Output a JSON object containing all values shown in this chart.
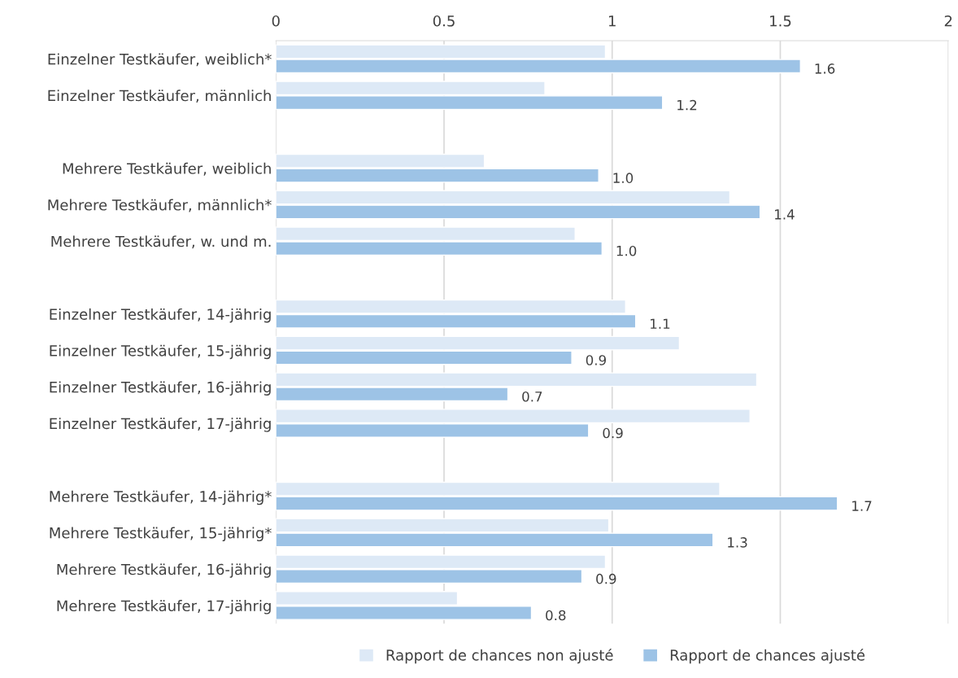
{
  "chart_data": {
    "type": "bar",
    "orientation": "horizontal",
    "categories": [
      "Einzelner Testkäufer, weiblich*",
      "Einzelner Testkäufer, männlich",
      null,
      "Mehrere Testkäufer, weiblich",
      "Mehrere Testkäufer, männlich*",
      "Mehrere Testkäufer, w. und m.",
      null,
      "Einzelner Testkäufer, 14-jährig",
      "Einzelner Testkäufer, 15-jährig",
      "Einzelner Testkäufer, 16-jährig",
      "Einzelner Testkäufer, 17-jährig",
      null,
      "Mehrere Testkäufer, 14-jährig*",
      "Mehrere Testkäufer, 15-jährig*",
      "Mehrere Testkäufer, 16-jährig",
      "Mehrere Testkäufer, 17-jährig"
    ],
    "series": [
      {
        "name": "Rapport de chances non ajusté",
        "color": "#dde9f6",
        "values": [
          0.98,
          0.8,
          null,
          0.62,
          1.35,
          0.89,
          null,
          1.04,
          1.2,
          1.43,
          1.41,
          null,
          1.32,
          0.99,
          0.98,
          0.54
        ]
      },
      {
        "name": "Rapport de chances ajusté",
        "color": "#9dc3e6",
        "values": [
          1.56,
          1.15,
          null,
          0.96,
          1.44,
          0.97,
          null,
          1.07,
          0.88,
          0.69,
          0.93,
          null,
          1.67,
          1.3,
          0.91,
          0.76
        ],
        "value_labels": [
          "1.6",
          "1.2",
          null,
          "1.0",
          "1.4",
          "1.0",
          null,
          "1.1",
          "0.9",
          "0.7",
          "0.9",
          null,
          "1.7",
          "1.3",
          "0.9",
          "0.8"
        ]
      }
    ],
    "xlim": [
      0,
      2
    ],
    "xticks": [
      0,
      0.5,
      1,
      1.5,
      2
    ],
    "grid": "x",
    "legend": "bottom"
  }
}
